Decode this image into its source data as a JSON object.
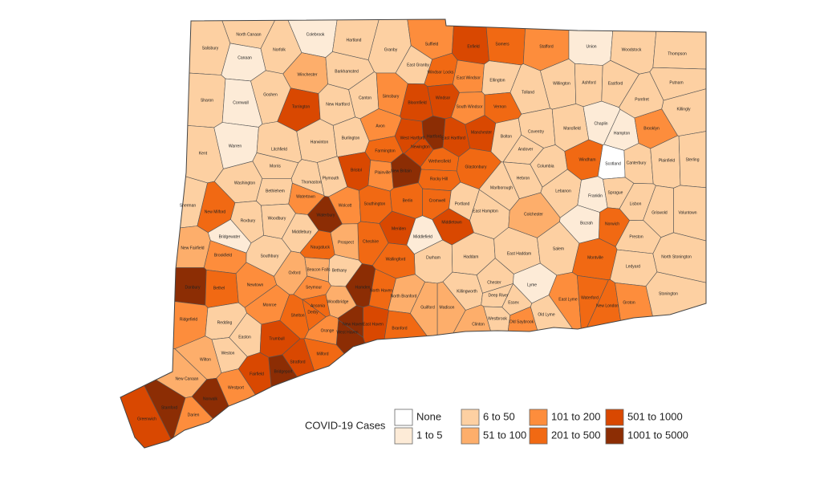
{
  "legend": {
    "title": "COVID-19 Cases",
    "items": [
      {
        "label": "None",
        "color": "#ffffff"
      },
      {
        "label": "1 to 5",
        "color": "#fdebd7"
      },
      {
        "label": "6 to 50",
        "color": "#fdd0a2"
      },
      {
        "label": "51 to 100",
        "color": "#fdae6b"
      },
      {
        "label": "101 to 200",
        "color": "#fd8d3c"
      },
      {
        "label": "201 to 500",
        "color": "#f16913"
      },
      {
        "label": "501 to 1000",
        "color": "#d94801"
      },
      {
        "label": "1001 to 5000",
        "color": "#8c2d04"
      }
    ]
  },
  "towns": [
    {
      "name": "Salisbury",
      "level": 2
    },
    {
      "name": "North Canaan",
      "level": 2
    },
    {
      "name": "Canaan",
      "level": 1
    },
    {
      "name": "Norfolk",
      "level": 2
    },
    {
      "name": "Colebrook",
      "level": 1
    },
    {
      "name": "Hartland",
      "level": 2
    },
    {
      "name": "Granby",
      "level": 2
    },
    {
      "name": "Suffield",
      "level": 4
    },
    {
      "name": "Enfield",
      "level": 6
    },
    {
      "name": "Somers",
      "level": 5
    },
    {
      "name": "Stafford",
      "level": 4
    },
    {
      "name": "Union",
      "level": 1
    },
    {
      "name": "Woodstock",
      "level": 2
    },
    {
      "name": "Thompson",
      "level": 2
    },
    {
      "name": "East Granby",
      "level": 2
    },
    {
      "name": "Windsor Locks",
      "level": 5
    },
    {
      "name": "Winchester",
      "level": 3
    },
    {
      "name": "Barkhamsted",
      "level": 2
    },
    {
      "name": "Sharon",
      "level": 2
    },
    {
      "name": "Cornwall",
      "level": 1
    },
    {
      "name": "Goshen",
      "level": 2
    },
    {
      "name": "Torrington",
      "level": 6
    },
    {
      "name": "New Hartford",
      "level": 2
    },
    {
      "name": "Canton",
      "level": 2
    },
    {
      "name": "Simsbury",
      "level": 4
    },
    {
      "name": "Bloomfield",
      "level": 6
    },
    {
      "name": "Windsor",
      "level": 6
    },
    {
      "name": "East Windsor",
      "level": 4
    },
    {
      "name": "Ellington",
      "level": 2
    },
    {
      "name": "South Windsor",
      "level": 4
    },
    {
      "name": "Vernon",
      "level": 5
    },
    {
      "name": "Tolland",
      "level": 2
    },
    {
      "name": "Willington",
      "level": 2
    },
    {
      "name": "Ashford",
      "level": 2
    },
    {
      "name": "Eastford",
      "level": 2
    },
    {
      "name": "Pomfret",
      "level": 2
    },
    {
      "name": "Putnam",
      "level": 2
    },
    {
      "name": "Killingly",
      "level": 2
    },
    {
      "name": "Avon",
      "level": 4
    },
    {
      "name": "West Hartford",
      "level": 6
    },
    {
      "name": "Hartford",
      "level": 7
    },
    {
      "name": "East Hartford",
      "level": 6
    },
    {
      "name": "Manchester",
      "level": 6
    },
    {
      "name": "Bolton",
      "level": 2
    },
    {
      "name": "Coventry",
      "level": 2
    },
    {
      "name": "Mansfield",
      "level": 2
    },
    {
      "name": "Chaplin",
      "level": 1
    },
    {
      "name": "Hampton",
      "level": 1
    },
    {
      "name": "Brooklyn",
      "level": 4
    },
    {
      "name": "Kent",
      "level": 2
    },
    {
      "name": "Warren",
      "level": 1
    },
    {
      "name": "Litchfield",
      "level": 2
    },
    {
      "name": "Harwinton",
      "level": 2
    },
    {
      "name": "Burlington",
      "level": 2
    },
    {
      "name": "Farmington",
      "level": 5
    },
    {
      "name": "Newington",
      "level": 6
    },
    {
      "name": "Wethersfield",
      "level": 5
    },
    {
      "name": "Glastonbury",
      "level": 5
    },
    {
      "name": "Andover",
      "level": 2
    },
    {
      "name": "Columbia",
      "level": 2
    },
    {
      "name": "Hebron",
      "level": 2
    },
    {
      "name": "Windham",
      "level": 5
    },
    {
      "name": "Scotland",
      "level": 0
    },
    {
      "name": "Canterbury",
      "level": 2
    },
    {
      "name": "Plainfield",
      "level": 2
    },
    {
      "name": "Sterling",
      "level": 2
    },
    {
      "name": "Morris",
      "level": 2
    },
    {
      "name": "Plymouth",
      "level": 2
    },
    {
      "name": "Bristol",
      "level": 6
    },
    {
      "name": "Plainville",
      "level": 4
    },
    {
      "name": "New Britain",
      "level": 7
    },
    {
      "name": "Rocky Hill",
      "level": 5
    },
    {
      "name": "Thomaston",
      "level": 2
    },
    {
      "name": "Washington",
      "level": 2
    },
    {
      "name": "Bethlehem",
      "level": 2
    },
    {
      "name": "Watertown",
      "level": 4
    },
    {
      "name": "Wolcott",
      "level": 4
    },
    {
      "name": "Southington",
      "level": 5
    },
    {
      "name": "Berlin",
      "level": 5
    },
    {
      "name": "Cromwell",
      "level": 5
    },
    {
      "name": "Portland",
      "level": 2
    },
    {
      "name": "Marlborough",
      "level": 2
    },
    {
      "name": "Lebanon",
      "level": 2
    },
    {
      "name": "Franklin",
      "level": 1
    },
    {
      "name": "Sprague",
      "level": 2
    },
    {
      "name": "Sherman",
      "level": 2
    },
    {
      "name": "New Milford",
      "level": 5
    },
    {
      "name": "Roxbury",
      "level": 2
    },
    {
      "name": "Woodbury",
      "level": 2
    },
    {
      "name": "Waterbury",
      "level": 7
    },
    {
      "name": "Meriden",
      "level": 6
    },
    {
      "name": "Middletown",
      "level": 6
    },
    {
      "name": "East Hampton",
      "level": 2
    },
    {
      "name": "Colchester",
      "level": 3
    },
    {
      "name": "Lisbon",
      "level": 2
    },
    {
      "name": "Griswold",
      "level": 2
    },
    {
      "name": "Voluntown",
      "level": 2
    },
    {
      "name": "Bozrah",
      "level": 1
    },
    {
      "name": "Norwich",
      "level": 5
    },
    {
      "name": "Bridgewater",
      "level": 1
    },
    {
      "name": "Middlebury",
      "level": 2
    },
    {
      "name": "Cheshire",
      "level": 5
    },
    {
      "name": "Middlefield",
      "level": 1
    },
    {
      "name": "Preston",
      "level": 2
    },
    {
      "name": "New Fairfield",
      "level": 3
    },
    {
      "name": "Brookfield",
      "level": 4
    },
    {
      "name": "Southbury",
      "level": 2
    },
    {
      "name": "Naugatuck",
      "level": 5
    },
    {
      "name": "Prospect",
      "level": 3
    },
    {
      "name": "Durham",
      "level": 2
    },
    {
      "name": "Haddam",
      "level": 2
    },
    {
      "name": "East Haddam",
      "level": 2
    },
    {
      "name": "Salem",
      "level": 2
    },
    {
      "name": "Montville",
      "level": 5
    },
    {
      "name": "Ledyard",
      "level": 2
    },
    {
      "name": "North Stonington",
      "level": 2
    },
    {
      "name": "Wallingford",
      "level": 5
    },
    {
      "name": "Beacon Falls",
      "level": 3
    },
    {
      "name": "Bethany",
      "level": 2
    },
    {
      "name": "Danbury",
      "level": 7
    },
    {
      "name": "Bethel",
      "level": 5
    },
    {
      "name": "Newtown",
      "level": 4
    },
    {
      "name": "Oxford",
      "level": 3
    },
    {
      "name": "Hamden",
      "level": 7
    },
    {
      "name": "North Haven",
      "level": 5
    },
    {
      "name": "Seymour",
      "level": 4
    },
    {
      "name": "Killingworth",
      "level": 2
    },
    {
      "name": "Chester",
      "level": 2
    },
    {
      "name": "Lyme",
      "level": 1
    },
    {
      "name": "Deep River",
      "level": 2
    },
    {
      "name": "Essex",
      "level": 2
    },
    {
      "name": "North Branford",
      "level": 3
    },
    {
      "name": "Madison",
      "level": 3
    },
    {
      "name": "Guilford",
      "level": 3
    },
    {
      "name": "Ansonia",
      "level": 5
    },
    {
      "name": "Derby",
      "level": 5
    },
    {
      "name": "Monroe",
      "level": 4
    },
    {
      "name": "Woodbridge",
      "level": 3
    },
    {
      "name": "East Lyme",
      "level": 4
    },
    {
      "name": "Waterford",
      "level": 5
    },
    {
      "name": "New London",
      "level": 5
    },
    {
      "name": "Groton",
      "level": 4
    },
    {
      "name": "Stonington",
      "level": 2
    },
    {
      "name": "Ridgefield",
      "level": 4
    },
    {
      "name": "Redding",
      "level": 2
    },
    {
      "name": "Shelton",
      "level": 5
    },
    {
      "name": "Westbrook",
      "level": 2
    },
    {
      "name": "Old Saybrook",
      "level": 4
    },
    {
      "name": "Old Lyme",
      "level": 2
    },
    {
      "name": "Clinton",
      "level": 3
    },
    {
      "name": "East Haven",
      "level": 6
    },
    {
      "name": "Branford",
      "level": 5
    },
    {
      "name": "New Haven",
      "level": 7
    },
    {
      "name": "West Haven",
      "level": 7
    },
    {
      "name": "Orange",
      "level": 4
    },
    {
      "name": "Milford",
      "level": 5
    },
    {
      "name": "Easton",
      "level": 2
    },
    {
      "name": "Trumbull",
      "level": 6
    },
    {
      "name": "Stratford",
      "level": 6
    },
    {
      "name": "Wilton",
      "level": 3
    },
    {
      "name": "Weston",
      "level": 2
    },
    {
      "name": "Fairfield",
      "level": 6
    },
    {
      "name": "Bridgeport",
      "level": 7
    },
    {
      "name": "New Canaan",
      "level": 3
    },
    {
      "name": "Westport",
      "level": 4
    },
    {
      "name": "Stamford",
      "level": 7
    },
    {
      "name": "Norwalk",
      "level": 7
    },
    {
      "name": "Greenwich",
      "level": 6
    },
    {
      "name": "Darien",
      "level": 4
    }
  ]
}
